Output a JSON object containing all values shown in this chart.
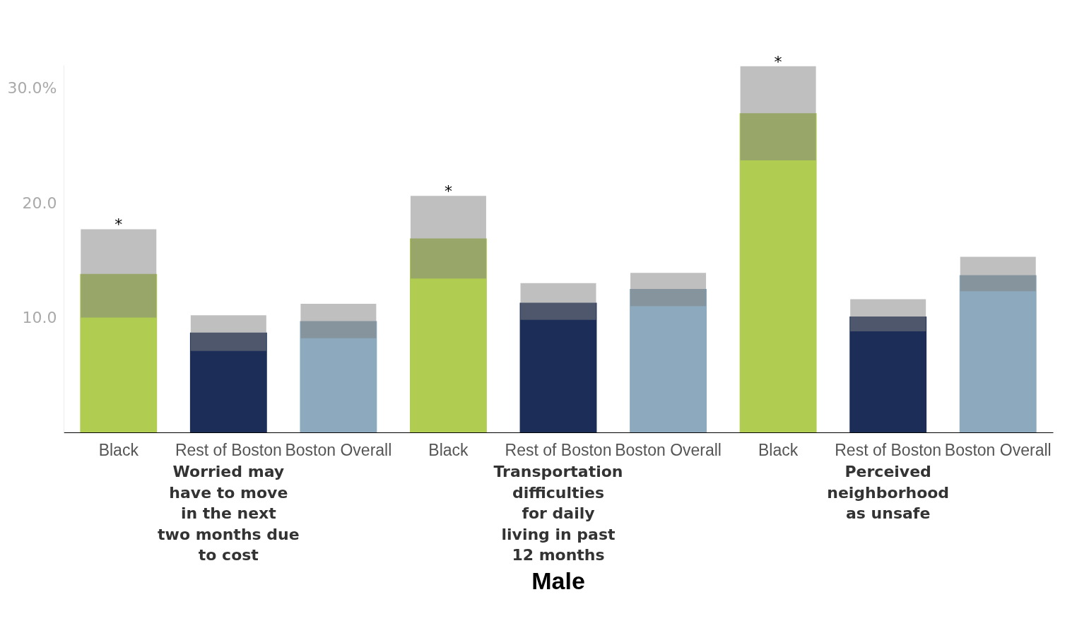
{
  "chart_data": {
    "type": "bar",
    "title": "Male",
    "categories": [
      "Black",
      "Rest of Boston",
      "Boston Overall",
      "Black",
      "Rest of Boston",
      "Boston Overall",
      "Black",
      "Rest of Boston",
      "Boston Overall"
    ],
    "values": [
      13.8,
      8.7,
      9.7,
      16.9,
      11.3,
      12.5,
      27.8,
      10.1,
      13.7
    ],
    "colors": [
      "#b0cd52",
      "#1c2e57",
      "#8ca9bd",
      "#b0cd52",
      "#1c2e57",
      "#8ca9bd",
      "#b0cd52",
      "#1c2e57",
      "#8ca9bd"
    ],
    "errors": [
      [
        10.0,
        17.7
      ],
      [
        7.1,
        10.2
      ],
      [
        8.2,
        11.2
      ],
      [
        13.4,
        20.6
      ],
      [
        9.8,
        13.0
      ],
      [
        11.0,
        13.9
      ],
      [
        23.7,
        31.9
      ],
      [
        8.8,
        11.6
      ],
      [
        12.3,
        15.3
      ]
    ],
    "value_labels": [
      "*",
      null,
      null,
      "*",
      null,
      null,
      "*",
      null,
      null
    ],
    "annotations": [
      "Worried may have to move in the next two months due to cost",
      "Transportation difficulties for daily living in past 12 months",
      "Perceived neighborhood as unsafe"
    ],
    "ylim": [
      0,
      32
    ],
    "yticks": [
      {
        "value": 10,
        "label": "10.0"
      },
      {
        "value": 20,
        "label": "20.0"
      },
      {
        "value": 30,
        "label": "30.0%"
      }
    ],
    "grid": false
  }
}
